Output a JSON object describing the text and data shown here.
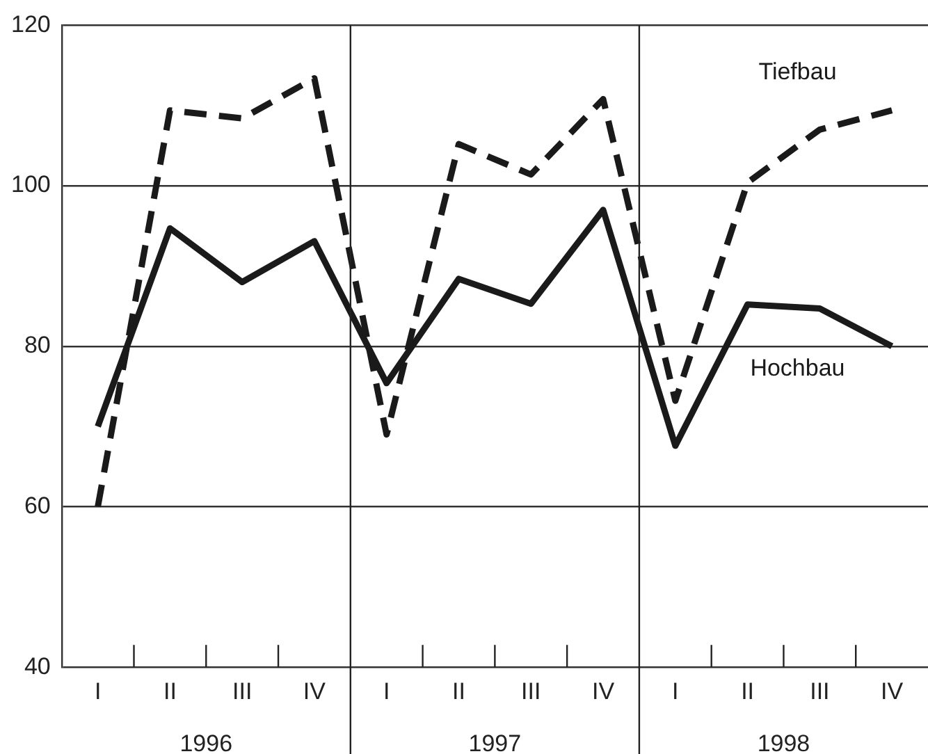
{
  "chart_data": {
    "type": "line",
    "categories": [
      "I",
      "II",
      "III",
      "IV",
      "I",
      "II",
      "III",
      "IV",
      "I",
      "II",
      "III",
      "IV"
    ],
    "annotations": [
      "1996",
      "1997",
      "1998"
    ],
    "series": [
      {
        "name": "Tiefbau",
        "color": "#1a1a1a",
        "line_style": "dashed",
        "values": [
          60,
          109.4,
          108.4,
          113.4,
          69,
          105.2,
          101.4,
          110.8,
          73.2,
          100.4,
          107,
          109.4
        ]
      },
      {
        "name": "Hochbau",
        "color": "#1a1a1a",
        "line_style": "solid",
        "values": [
          70,
          94.7,
          88,
          93.1,
          75.4,
          88.4,
          85.3,
          97,
          67.6,
          85.2,
          84.7,
          80
        ]
      }
    ],
    "ylim": [
      40,
      120
    ],
    "yticks": [
      40,
      60,
      80,
      100,
      120
    ],
    "grid": "y",
    "legend": false,
    "marker": "none"
  }
}
